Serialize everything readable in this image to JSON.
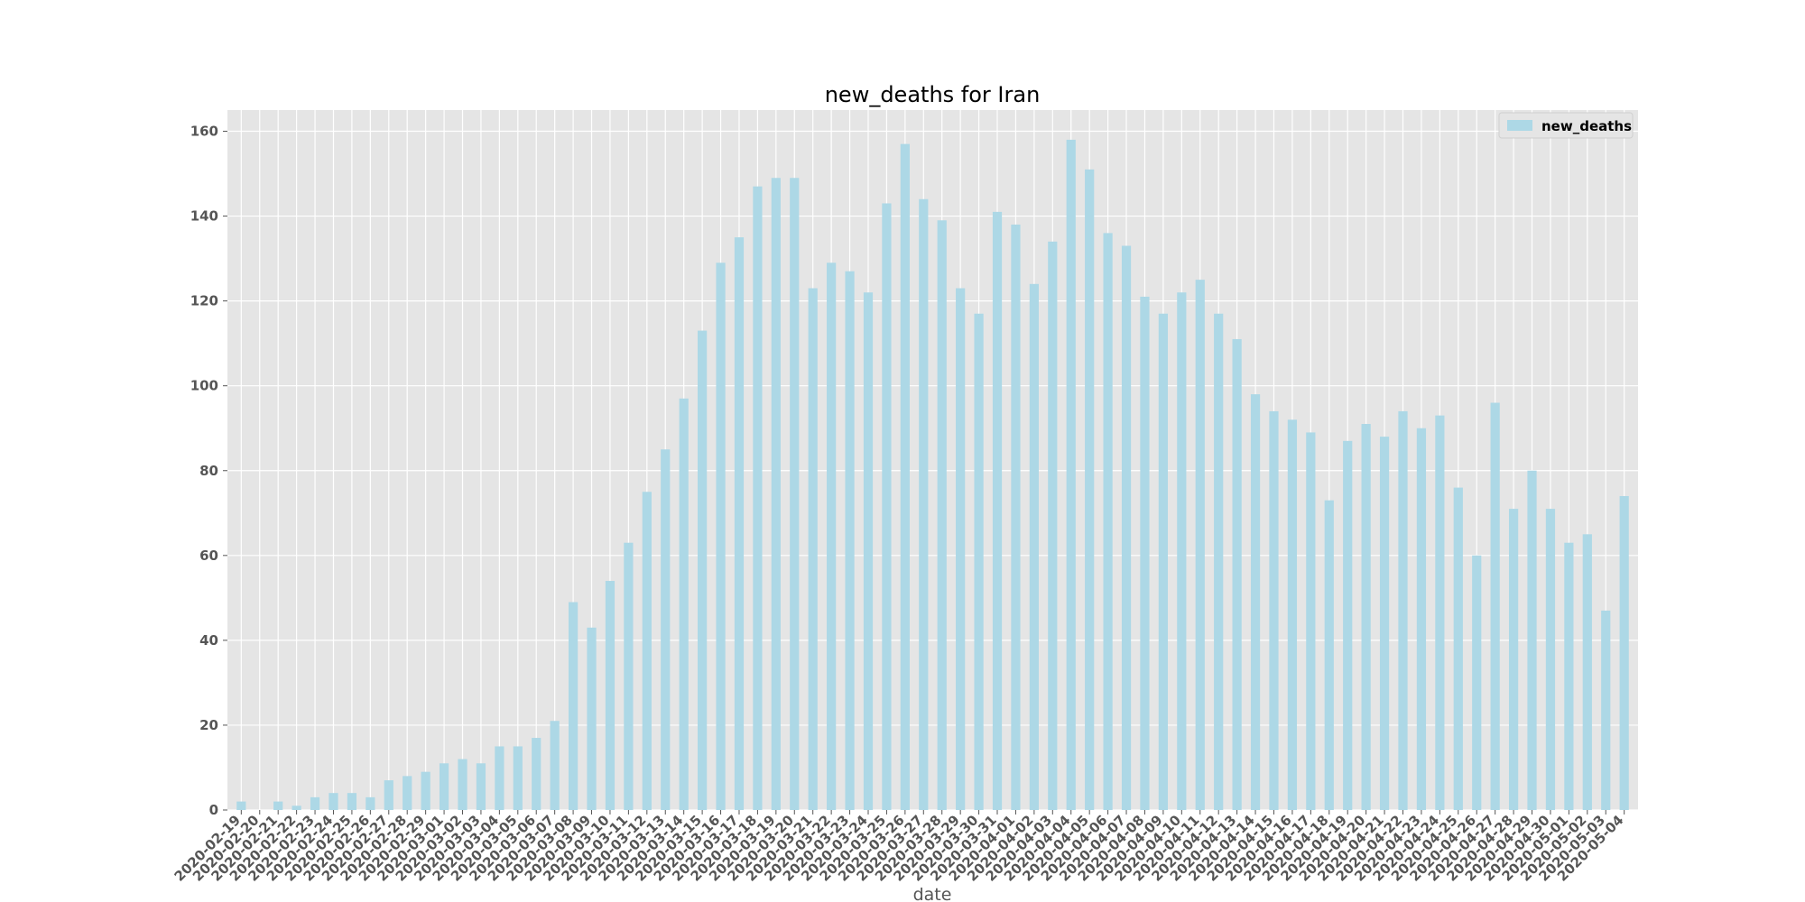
{
  "chart_data": {
    "type": "bar",
    "title": "new_deaths for Iran",
    "xlabel": "date",
    "ylabel": "",
    "ylim": [
      0,
      165
    ],
    "yticks": [
      0,
      20,
      40,
      60,
      80,
      100,
      120,
      140,
      160
    ],
    "grid": true,
    "legend_position": "top-right",
    "colors": {
      "bar": "#add8e6",
      "background": "#e5e5e5",
      "grid": "#ffffff"
    },
    "categories": [
      "2020-02-19",
      "2020-02-20",
      "2020-02-21",
      "2020-02-22",
      "2020-02-23",
      "2020-02-24",
      "2020-02-25",
      "2020-02-26",
      "2020-02-27",
      "2020-02-28",
      "2020-02-29",
      "2020-03-01",
      "2020-03-02",
      "2020-03-03",
      "2020-03-04",
      "2020-03-05",
      "2020-03-06",
      "2020-03-07",
      "2020-03-08",
      "2020-03-09",
      "2020-03-10",
      "2020-03-11",
      "2020-03-12",
      "2020-03-13",
      "2020-03-14",
      "2020-03-15",
      "2020-03-16",
      "2020-03-17",
      "2020-03-18",
      "2020-03-19",
      "2020-03-20",
      "2020-03-21",
      "2020-03-22",
      "2020-03-23",
      "2020-03-24",
      "2020-03-25",
      "2020-03-26",
      "2020-03-27",
      "2020-03-28",
      "2020-03-29",
      "2020-03-30",
      "2020-03-31",
      "2020-04-01",
      "2020-04-02",
      "2020-04-03",
      "2020-04-04",
      "2020-04-05",
      "2020-04-06",
      "2020-04-07",
      "2020-04-08",
      "2020-04-09",
      "2020-04-10",
      "2020-04-11",
      "2020-04-12",
      "2020-04-13",
      "2020-04-14",
      "2020-04-15",
      "2020-04-16",
      "2020-04-17",
      "2020-04-18",
      "2020-04-19",
      "2020-04-20",
      "2020-04-21",
      "2020-04-22",
      "2020-04-23",
      "2020-04-24",
      "2020-04-25",
      "2020-04-26",
      "2020-04-27",
      "2020-04-28",
      "2020-04-29",
      "2020-04-30",
      "2020-05-01",
      "2020-05-02",
      "2020-05-03",
      "2020-05-04"
    ],
    "series": [
      {
        "name": "new_deaths",
        "values": [
          2,
          0,
          2,
          1,
          3,
          4,
          4,
          3,
          7,
          8,
          9,
          11,
          12,
          11,
          15,
          15,
          17,
          21,
          49,
          43,
          54,
          63,
          75,
          85,
          97,
          113,
          129,
          135,
          147,
          149,
          149,
          123,
          129,
          127,
          122,
          143,
          157,
          144,
          139,
          123,
          117,
          141,
          138,
          124,
          134,
          158,
          151,
          136,
          133,
          121,
          117,
          122,
          125,
          117,
          111,
          98,
          94,
          92,
          89,
          73,
          87,
          91,
          88,
          94,
          90,
          93,
          76,
          60,
          96,
          71,
          80,
          71,
          63,
          65,
          47,
          74
        ]
      }
    ]
  }
}
